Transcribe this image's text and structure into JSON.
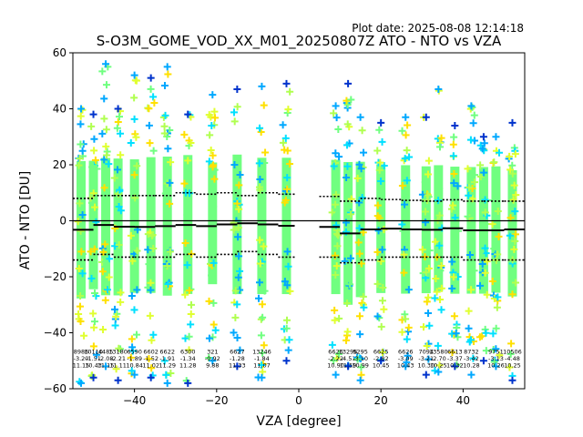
{
  "plot_date": "Plot date: 2025-08-08 12:14:18",
  "chart_data": {
    "type": "scatter",
    "title": "S-O3M_GOME_VOD_XX_M01_20250807Z ATO - NTO vs VZA",
    "xlabel": "VZA [degree]",
    "ylabel": "ATO - NTO [DU]",
    "xlim": [
      -55,
      55
    ],
    "ylim": [
      -60,
      60
    ],
    "xticks": [
      -40,
      -20,
      0,
      20,
      40
    ],
    "yticks": [
      -60,
      -40,
      -20,
      0,
      20,
      40,
      60
    ],
    "grid": false,
    "reference_line": 0,
    "bins": [
      {
        "vza": -53,
        "count": "8986",
        "mean": -3.2,
        "sd": 11.15,
        "max": 40,
        "min": -58
      },
      {
        "vza": -50,
        "count": "10110",
        "mean": -1.51,
        "sd": 10.43,
        "max": 38,
        "min": -56
      },
      {
        "vza": -47,
        "count": "4485",
        "mean": -2.08,
        "sd": 11.15,
        "max": 56,
        "min": -52
      },
      {
        "vza": -44,
        "count": "13180",
        "mean": -2.21,
        "sd": 11.11,
        "max": 40,
        "min": -57
      },
      {
        "vza": -40,
        "count": "6590",
        "mean": -1.89,
        "sd": 10.84,
        "max": 52,
        "min": -55
      },
      {
        "vza": -36,
        "count": "6602",
        "mean": -1.52,
        "sd": 11.02,
        "max": 51,
        "min": -56
      },
      {
        "vza": -32,
        "count": "6622",
        "mean": -1.91,
        "sd": 11.29,
        "max": 55,
        "min": -58
      },
      {
        "vza": -27,
        "count": "6300",
        "mean": -1.34,
        "sd": 11.28,
        "max": 38,
        "min": -58
      },
      {
        "vza": -21,
        "count": "321",
        "mean": -0.92,
        "sd": 9.88,
        "max": 45,
        "min": -50
      },
      {
        "vza": -15,
        "count": "6627",
        "mean": -1.28,
        "sd": 11.33,
        "max": 47,
        "min": -52
      },
      {
        "vza": -9,
        "count": "13246",
        "mean": -1.84,
        "sd": 11.07,
        "max": 48,
        "min": -56
      },
      {
        "vza": -3,
        "count": "",
        "mean": -1.84,
        "sd": 11.07,
        "max": 49,
        "min": -50
      },
      {
        "vza": 9,
        "count": "6626",
        "mean": -2.22,
        "sd": 10.9,
        "max": 41,
        "min": -55
      },
      {
        "vza": 12,
        "count": "13296",
        "mean": -4.51,
        "sd": 11.59,
        "max": 49,
        "min": -52
      },
      {
        "vza": 15,
        "count": "5295",
        "mean": -3.1,
        "sd": 10.99,
        "max": 37,
        "min": -57
      },
      {
        "vza": 20,
        "count": "6625",
        "mean": -2.82,
        "sd": 10.45,
        "max": 35,
        "min": -50
      },
      {
        "vza": 26,
        "count": "6626",
        "mean": -3.09,
        "sd": 10.43,
        "max": 37,
        "min": -52
      },
      {
        "vza": 31,
        "count": "7094",
        "mean": -3.21,
        "sd": 10.3,
        "max": 37,
        "min": -55
      },
      {
        "vza": 34,
        "count": "13580",
        "mean": -2.7,
        "sd": 10.25,
        "max": 47,
        "min": -54
      },
      {
        "vza": 38,
        "count": "6613",
        "mean": -3.37,
        "sd": 10.32,
        "max": 34,
        "min": -52
      },
      {
        "vza": 42,
        "count": "8732",
        "mean": -3.42,
        "sd": 10.28,
        "max": 41,
        "min": -55
      },
      {
        "vza": 45,
        "count": "",
        "mean": -3.42,
        "sd": 10.28,
        "max": 30,
        "min": -50
      },
      {
        "vza": 48,
        "count": "9751",
        "mean": -3.13,
        "sd": 10.26,
        "max": 30,
        "min": -52
      },
      {
        "vza": 52,
        "count": "10506",
        "mean": -4.48,
        "sd": 10.25,
        "max": 35,
        "min": -57
      }
    ],
    "series": [
      {
        "name": "mean",
        "style": "solid",
        "color": "#000000",
        "x": [
          -55,
          -50,
          -45,
          -40,
          -35,
          -30,
          -25,
          -20,
          -15,
          -10,
          -5,
          -1,
          5,
          10,
          15,
          20,
          25,
          30,
          35,
          40,
          45,
          50,
          55
        ],
        "y": [
          -3.2,
          -1.5,
          -2.1,
          -2.2,
          -1.9,
          -1.5,
          -1.9,
          -1.3,
          -0.9,
          -1.3,
          -1.8,
          -1.8,
          -2.2,
          -4.5,
          -3.1,
          -2.8,
          -3.1,
          -3.2,
          -2.7,
          -3.4,
          -3.4,
          -3.1,
          -4.5
        ]
      },
      {
        "name": "mean+sd",
        "style": "dotted",
        "color": "#000000",
        "x": [
          -55,
          -50,
          -45,
          -40,
          -35,
          -30,
          -25,
          -20,
          -15,
          -10,
          -5,
          -1,
          5,
          10,
          15,
          20,
          25,
          30,
          35,
          40,
          45,
          50,
          55
        ],
        "y": [
          8,
          9,
          9,
          9,
          9,
          10,
          9.5,
          10,
          9,
          10,
          9.5,
          9.3,
          8.7,
          7,
          8,
          7.6,
          7.3,
          7,
          7.5,
          7,
          7,
          7,
          6
        ]
      },
      {
        "name": "mean-sd",
        "style": "dotted",
        "color": "#000000",
        "x": [
          -55,
          -50,
          -45,
          -40,
          -35,
          -30,
          -25,
          -20,
          -15,
          -10,
          -5,
          -1,
          5,
          10,
          15,
          20,
          25,
          30,
          35,
          40,
          45,
          50,
          55
        ],
        "y": [
          -14,
          -12,
          -13,
          -13,
          -13,
          -12,
          -13,
          -12,
          -11,
          -12,
          -13,
          -13,
          -13,
          -15,
          -14,
          -13,
          -13,
          -13,
          -13,
          -14,
          -14,
          -14,
          -15
        ]
      }
    ],
    "marker_colors": [
      "#00a8ff",
      "#00e0ff",
      "#70ff80",
      "#b0ff50",
      "#e0ff30",
      "#ffe000",
      "#0033cc"
    ]
  }
}
